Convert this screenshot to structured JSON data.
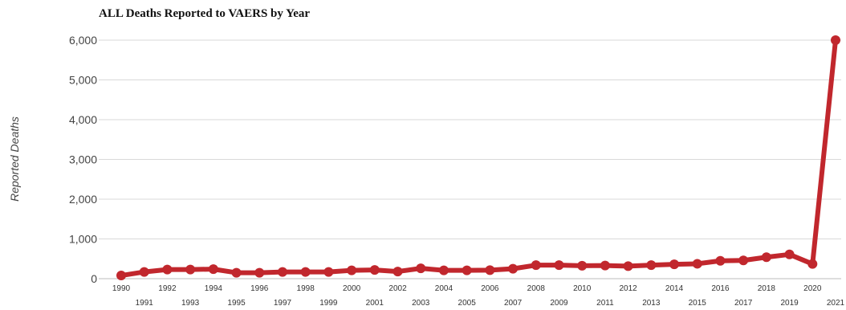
{
  "chart_data": {
    "type": "line",
    "title": "ALL Deaths Reported to VAERS by Year",
    "ylabel": "Reported Deaths",
    "xlabel": "",
    "ylim": [
      0,
      6000
    ],
    "yticks": [
      "0",
      "1,000",
      "2,000",
      "3,000",
      "4,000",
      "5,000",
      "6,000"
    ],
    "ytick_values": [
      0,
      1000,
      2000,
      3000,
      4000,
      5000,
      6000
    ],
    "grid": true,
    "legend": "none",
    "colors": {
      "series": "#c1272d",
      "grid": "#d9d9d9"
    },
    "x": [
      "1990",
      "1991",
      "1992",
      "1993",
      "1994",
      "1995",
      "1996",
      "1997",
      "1998",
      "1999",
      "2000",
      "2001",
      "2002",
      "2003",
      "2004",
      "2005",
      "2006",
      "2007",
      "2008",
      "2009",
      "2010",
      "2011",
      "2012",
      "2013",
      "2014",
      "2015",
      "2016",
      "2017",
      "2018",
      "2019",
      "2020",
      "2021"
    ],
    "values": [
      80,
      170,
      230,
      230,
      240,
      150,
      150,
      170,
      170,
      170,
      210,
      220,
      180,
      260,
      210,
      210,
      215,
      250,
      340,
      340,
      325,
      330,
      315,
      340,
      360,
      375,
      450,
      460,
      540,
      610,
      370,
      6000
    ]
  }
}
